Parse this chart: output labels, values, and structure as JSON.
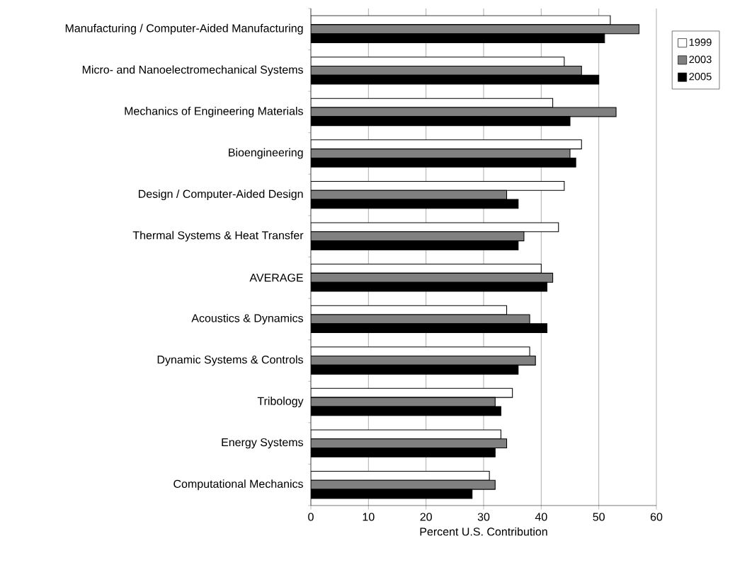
{
  "chart_data": {
    "type": "bar",
    "orientation": "horizontal",
    "xlabel": "Percent U.S. Contribution",
    "categories": [
      "Manufacturing / Computer-Aided Manufacturing",
      "Micro- and Nanoelectromechanical Systems",
      "Mechanics of Engineering Materials",
      "Bioengineering",
      "Design / Computer-Aided Design",
      "Thermal Systems & Heat Transfer",
      "AVERAGE",
      "Acoustics & Dynamics",
      "Dynamic Systems & Controls",
      "Tribology",
      "Energy Systems",
      "Computational Mechanics"
    ],
    "series": [
      {
        "name": "1999",
        "color": "#ffffff",
        "values": [
          52,
          44,
          42,
          47,
          44,
          43,
          40,
          34,
          38,
          35,
          33,
          31
        ]
      },
      {
        "name": "2003",
        "color": "#808080",
        "values": [
          57,
          47,
          53,
          45,
          34,
          37,
          42,
          38,
          39,
          32,
          34,
          32
        ]
      },
      {
        "name": "2005",
        "color": "#000000",
        "values": [
          51,
          50,
          45,
          46,
          36,
          36,
          41,
          41,
          36,
          33,
          32,
          28
        ]
      }
    ],
    "xlim": [
      0,
      60
    ],
    "xticks": [
      0,
      10,
      20,
      30,
      40,
      50,
      60
    ],
    "grid": "x",
    "legend": "right"
  }
}
